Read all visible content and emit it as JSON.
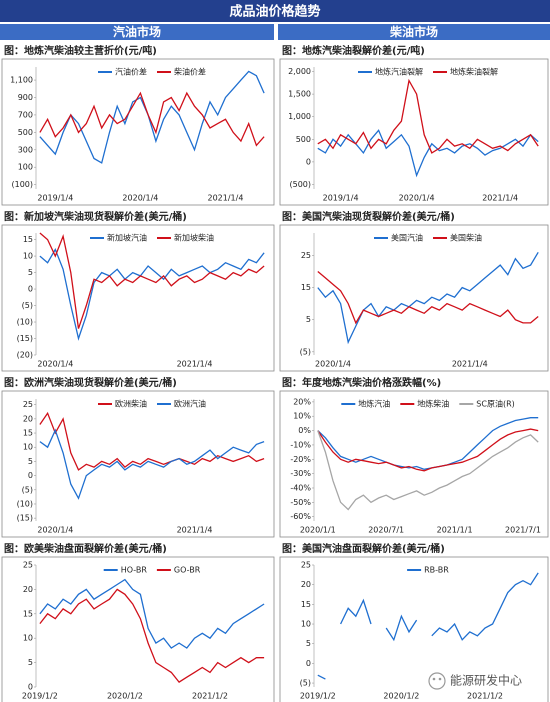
{
  "header": {
    "title": "成品油价格趋势",
    "left": "汽油市场",
    "right": "柴油市场"
  },
  "watermark": "能源研发中心",
  "chart_data": [
    {
      "type": "line",
      "title": "图：地炼汽柴油较主营折价(元/吨)",
      "categories": [
        null,
        null,
        "2019/1/4",
        null,
        null,
        null,
        null,
        null,
        null,
        null,
        null,
        null,
        null,
        "2020/1/4",
        null,
        null,
        null,
        null,
        null,
        null,
        null,
        null,
        null,
        null,
        "2021/1/4",
        null,
        null,
        null,
        null,
        null
      ],
      "series": [
        {
          "name": "汽油价差",
          "color": "#1f6fd0",
          "values": [
            450,
            350,
            250,
            500,
            700,
            600,
            400,
            200,
            150,
            500,
            800,
            600,
            850,
            900,
            700,
            400,
            650,
            800,
            700,
            500,
            300,
            600,
            850,
            700,
            900,
            1000,
            1100,
            1200,
            1150,
            950
          ]
        },
        {
          "name": "柴油价差",
          "color": "#d0101a",
          "values": [
            500,
            650,
            450,
            550,
            700,
            500,
            600,
            800,
            550,
            700,
            600,
            650,
            800,
            950,
            700,
            500,
            850,
            900,
            750,
            950,
            800,
            700,
            550,
            600,
            650,
            500,
            400,
            600,
            350,
            450
          ]
        }
      ],
      "ylim": [
        -150,
        1250
      ],
      "yticks": [
        {
          "value": -100,
          "label": "(100)"
        },
        100,
        300,
        500,
        700,
        900,
        {
          "value": 1100,
          "label": "1,100"
        }
      ],
      "legend": "top",
      "grid": false
    },
    {
      "type": "line",
      "title": "图：地炼汽柴油裂解价差(元/吨)",
      "categories": [
        null,
        null,
        null,
        "2019/1/4",
        null,
        null,
        null,
        null,
        null,
        null,
        null,
        null,
        null,
        "2020/1/4",
        null,
        null,
        null,
        null,
        null,
        null,
        null,
        null,
        null,
        null,
        "2021/1/4",
        null,
        null,
        null,
        null,
        null
      ],
      "series": [
        {
          "name": "地炼汽油裂解",
          "color": "#1f6fd0",
          "values": [
            300,
            200,
            500,
            350,
            600,
            400,
            200,
            500,
            700,
            300,
            450,
            600,
            350,
            -300,
            100,
            400,
            250,
            300,
            200,
            350,
            400,
            300,
            150,
            250,
            300,
            400,
            500,
            350,
            600,
            450
          ]
        },
        {
          "name": "地炼柴油裂解",
          "color": "#d0101a",
          "values": [
            400,
            500,
            300,
            600,
            500,
            400,
            650,
            300,
            500,
            400,
            700,
            900,
            1800,
            1500,
            600,
            200,
            300,
            500,
            350,
            400,
            300,
            500,
            400,
            300,
            350,
            250,
            400,
            500,
            600,
            350
          ]
        }
      ],
      "ylim": [
        -600,
        2100
      ],
      "yticks": [
        {
          "value": -500,
          "label": "(500)"
        },
        0,
        500,
        {
          "value": 1000,
          "label": "1,000"
        },
        {
          "value": 1500,
          "label": "1,500"
        },
        {
          "value": 2000,
          "label": "2,000"
        }
      ],
      "legend": "top",
      "grid": false
    },
    {
      "type": "line",
      "title": "图：新加坡汽柴油现货裂解价差(美元/桶)",
      "categories": [
        null,
        null,
        "2020/1/4",
        null,
        null,
        null,
        null,
        null,
        null,
        null,
        null,
        null,
        null,
        null,
        null,
        null,
        null,
        null,
        null,
        null,
        "2021/1/4",
        null,
        null,
        null,
        null,
        null,
        null,
        null,
        null,
        null
      ],
      "series": [
        {
          "name": "新加坡汽油",
          "color": "#1f6fd0",
          "values": [
            10,
            8,
            12,
            6,
            -5,
            -15,
            -8,
            2,
            5,
            4,
            6,
            3,
            5,
            4,
            7,
            5,
            3,
            6,
            4,
            5,
            6,
            7,
            5,
            6,
            8,
            7,
            6,
            9,
            8,
            11
          ]
        },
        {
          "name": "新加坡柴油",
          "color": "#d0101a",
          "values": [
            17,
            15,
            10,
            16,
            5,
            -12,
            -5,
            3,
            2,
            4,
            1,
            3,
            2,
            4,
            3,
            2,
            4,
            1,
            3,
            4,
            2,
            3,
            5,
            4,
            3,
            5,
            4,
            6,
            5,
            7
          ]
        }
      ],
      "ylim": [
        -20,
        17
      ],
      "yticks": [
        {
          "value": -20,
          "label": "(20)"
        },
        {
          "value": -15,
          "label": "(15)"
        },
        {
          "value": -10,
          "label": "(10)"
        },
        {
          "value": -5,
          "label": "(5)"
        },
        0,
        5,
        10,
        15
      ],
      "legend": "top",
      "grid": false
    },
    {
      "type": "line",
      "title": "图：美国汽柴油现货裂解价差(美元/桶)",
      "categories": [
        null,
        null,
        "2020/1/4",
        null,
        null,
        null,
        null,
        null,
        null,
        null,
        null,
        null,
        null,
        null,
        null,
        null,
        null,
        null,
        null,
        null,
        "2021/1/4",
        null,
        null,
        null,
        null,
        null,
        null,
        null,
        null,
        null
      ],
      "series": [
        {
          "name": "美国汽油",
          "color": "#1f6fd0",
          "values": [
            15,
            12,
            14,
            10,
            -2,
            3,
            8,
            10,
            6,
            9,
            8,
            10,
            9,
            11,
            10,
            12,
            11,
            13,
            12,
            15,
            14,
            16,
            18,
            20,
            22,
            19,
            24,
            21,
            22,
            26
          ]
        },
        {
          "name": "美国柴油",
          "color": "#d0101a",
          "values": [
            20,
            18,
            16,
            14,
            10,
            4,
            8,
            7,
            6,
            7,
            8,
            7,
            9,
            8,
            7,
            9,
            8,
            10,
            9,
            8,
            10,
            9,
            8,
            7,
            6,
            8,
            5,
            4,
            4,
            6
          ]
        }
      ],
      "ylim": [
        -6,
        32
      ],
      "yticks": [
        {
          "value": -5,
          "label": "(5)"
        },
        5,
        15,
        25
      ],
      "legend": "top",
      "grid": false
    },
    {
      "type": "line",
      "title": "图：欧洲汽柴油现货裂解价差(美元/桶)",
      "categories": [
        null,
        null,
        "2020/1/4",
        null,
        null,
        null,
        null,
        null,
        null,
        null,
        null,
        null,
        null,
        null,
        null,
        null,
        null,
        null,
        null,
        null,
        "2021/1/4",
        null,
        null,
        null,
        null,
        null,
        null,
        null,
        null,
        null
      ],
      "series": [
        {
          "name": "欧洲柴油",
          "color": "#d0101a",
          "values": [
            18,
            22,
            15,
            20,
            8,
            2,
            4,
            3,
            5,
            4,
            6,
            3,
            5,
            4,
            6,
            5,
            4,
            5,
            6,
            5,
            4,
            6,
            5,
            7,
            6,
            5,
            6,
            7,
            5,
            6
          ]
        },
        {
          "name": "欧洲汽油",
          "color": "#1f6fd0",
          "values": [
            12,
            10,
            16,
            8,
            -3,
            -8,
            0,
            2,
            4,
            3,
            5,
            2,
            4,
            3,
            5,
            4,
            3,
            5,
            6,
            4,
            5,
            7,
            9,
            6,
            8,
            10,
            9,
            8,
            11,
            12
          ]
        }
      ],
      "ylim": [
        -16,
        27
      ],
      "yticks": [
        {
          "value": -15,
          "label": "(15)"
        },
        {
          "value": -10,
          "label": "(10)"
        },
        {
          "value": -5,
          "label": "(5)"
        },
        0,
        5,
        10,
        15,
        20,
        25
      ],
      "legend": "top",
      "grid": false
    },
    {
      "type": "line",
      "title": "图：年度地炼汽柴油价格涨跌幅(%)",
      "categories": [
        "2020/1/1",
        null,
        null,
        null,
        null,
        null,
        null,
        null,
        null,
        "2020/7/1",
        null,
        null,
        null,
        null,
        null,
        null,
        null,
        null,
        "2021/1/1",
        null,
        null,
        null,
        null,
        null,
        null,
        null,
        null,
        "2021/7/1",
        null,
        null
      ],
      "series": [
        {
          "name": "地炼汽油",
          "color": "#1f6fd0",
          "values": [
            0,
            -5,
            -12,
            -18,
            -20,
            -22,
            -20,
            -18,
            -20,
            -22,
            -24,
            -25,
            -26,
            -25,
            -27,
            -26,
            -25,
            -24,
            -22,
            -20,
            -15,
            -10,
            -5,
            0,
            3,
            5,
            7,
            8,
            9,
            9
          ]
        },
        {
          "name": "地炼柴油",
          "color": "#d0101a",
          "values": [
            0,
            -8,
            -15,
            -20,
            -22,
            -20,
            -21,
            -22,
            -23,
            -22,
            -24,
            -26,
            -25,
            -27,
            -28,
            -26,
            -25,
            -24,
            -23,
            -22,
            -20,
            -18,
            -14,
            -10,
            -6,
            -3,
            -1,
            0,
            1,
            0
          ]
        },
        {
          "name": "SC原油(R)",
          "color": "#a6a6a6",
          "values": [
            0,
            -15,
            -35,
            -50,
            -55,
            -48,
            -45,
            -50,
            -47,
            -45,
            -48,
            -46,
            -44,
            -42,
            -45,
            -43,
            -40,
            -38,
            -35,
            -32,
            -30,
            -26,
            -22,
            -18,
            -15,
            -12,
            -8,
            -5,
            -3,
            -8
          ]
        }
      ],
      "ylim": [
        -63,
        22
      ],
      "yticks": [
        {
          "value": -60,
          "label": "-60%"
        },
        {
          "value": -50,
          "label": "-50%"
        },
        {
          "value": -40,
          "label": "-40%"
        },
        {
          "value": -30,
          "label": "-30%"
        },
        {
          "value": -20,
          "label": "-20%"
        },
        {
          "value": -10,
          "label": "-10%"
        },
        {
          "value": 0,
          "label": "0%"
        },
        {
          "value": 10,
          "label": "10%"
        },
        {
          "value": 20,
          "label": "20%"
        }
      ],
      "legend": "top",
      "grid": false
    },
    {
      "type": "line",
      "title": "图：欧美柴油盘面裂解价差(美元/桶)",
      "categories": [
        "2019/1/2",
        null,
        null,
        null,
        null,
        null,
        null,
        null,
        null,
        null,
        null,
        "2020/1/2",
        null,
        null,
        null,
        null,
        null,
        null,
        null,
        null,
        null,
        null,
        "2021/1/2",
        null,
        null,
        null,
        null,
        null,
        null,
        null
      ],
      "series": [
        {
          "name": "HO-BR",
          "color": "#1f6fd0",
          "values": [
            15,
            17,
            16,
            18,
            17,
            19,
            20,
            18,
            19,
            20,
            21,
            22,
            20,
            19,
            12,
            9,
            10,
            8,
            9,
            8,
            10,
            11,
            10,
            12,
            11,
            13,
            14,
            15,
            16,
            17
          ]
        },
        {
          "name": "GO-BR",
          "color": "#d0101a",
          "values": [
            13,
            15,
            14,
            16,
            15,
            17,
            18,
            16,
            17,
            18,
            20,
            19,
            17,
            14,
            9,
            5,
            4,
            3,
            1,
            2,
            3,
            4,
            3,
            5,
            4,
            5,
            6,
            5,
            6,
            6
          ]
        }
      ],
      "ylim": [
        0,
        25
      ],
      "yticks": [
        0,
        5,
        10,
        15,
        20,
        25
      ],
      "legend": "top",
      "grid": false
    },
    {
      "type": "line",
      "title": "图：美国汽油盘面裂解价差(美元/桶)",
      "categories": [
        "2019/1/2",
        null,
        null,
        null,
        null,
        null,
        null,
        null,
        null,
        null,
        null,
        "2020/1/2",
        null,
        null,
        null,
        null,
        null,
        null,
        null,
        null,
        null,
        null,
        "2021/1/2",
        null,
        null,
        null,
        null,
        null,
        null,
        null
      ],
      "series": [
        {
          "name": "RB-BR",
          "color": "#1f6fd0",
          "values": [
            -3,
            -4,
            null,
            10,
            14,
            12,
            16,
            10,
            null,
            9,
            6,
            12,
            8,
            11,
            null,
            7,
            9,
            8,
            10,
            6,
            8,
            7,
            9,
            10,
            14,
            18,
            20,
            21,
            20,
            23
          ]
        }
      ],
      "ylim": [
        -6,
        25
      ],
      "yticks": [
        {
          "value": -5,
          "label": "(5)"
        },
        0,
        5,
        10,
        15,
        20,
        25
      ],
      "legend": "top",
      "grid": false
    }
  ]
}
